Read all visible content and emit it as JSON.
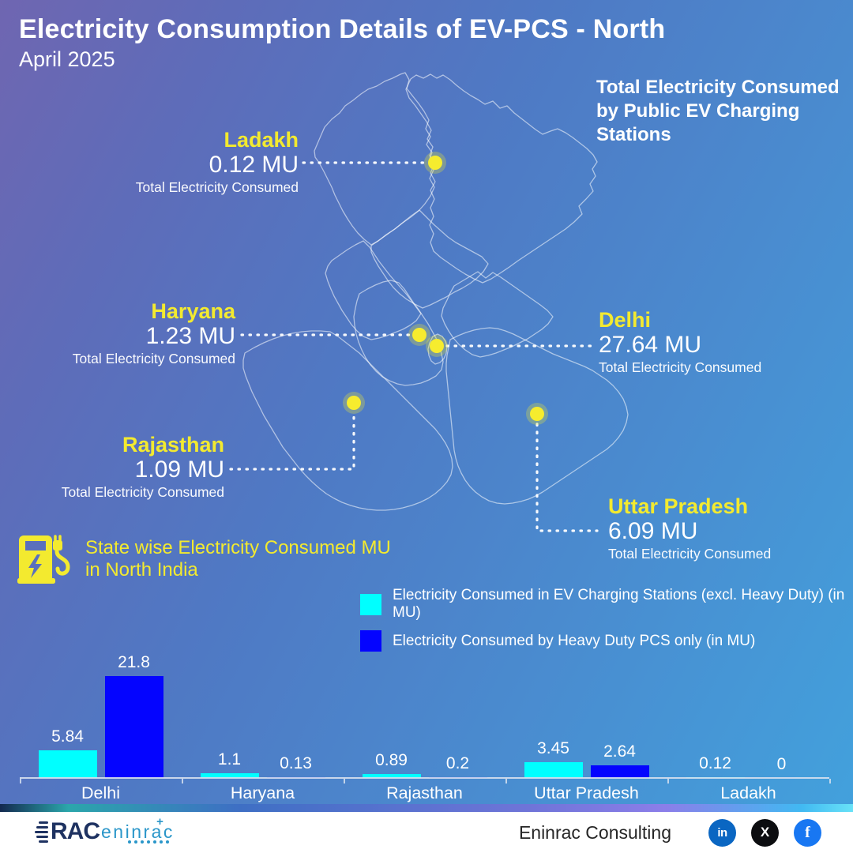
{
  "header": {
    "title": "Electricity Consumption Details of EV-PCS - North",
    "subtitle": "April 2025"
  },
  "map_note": "Total Electricity Consumed by Public EV Charging Stations",
  "states": [
    {
      "name": "Ladakh",
      "value": "0.12 MU",
      "caption": "Total Electricity Consumed"
    },
    {
      "name": "Haryana",
      "value": "1.23 MU",
      "caption": "Total Electricity Consumed"
    },
    {
      "name": "Delhi",
      "value": "27.64 MU",
      "caption": "Total Electricity Consumed"
    },
    {
      "name": "Rajasthan",
      "value": "1.09 MU",
      "caption": "Total Electricity Consumed"
    },
    {
      "name": "Uttar Pradesh",
      "value": "6.09 MU",
      "caption": "Total Electricity Consumed"
    }
  ],
  "section_label": {
    "line1": "State wise Electricity Consumed MU",
    "line2": "in North India"
  },
  "chart_data": {
    "type": "bar",
    "title": "State wise Electricity Consumed MU in North India",
    "categories": [
      "Delhi",
      "Haryana",
      "Rajasthan",
      "Uttar Pradesh",
      "Ladakh"
    ],
    "series": [
      {
        "name": "Electricity Consumed in EV Charging Stations (excl. Heavy Duty) (in MU)",
        "color": "#00FFFF",
        "values": [
          5.84,
          1.1,
          0.89,
          3.45,
          0.12
        ]
      },
      {
        "name": "Electricity Consumed by Heavy Duty PCS only (in MU)",
        "color": "#0404FF",
        "values": [
          21.8,
          0.13,
          0.2,
          2.64,
          0
        ]
      }
    ],
    "value_labels": [
      [
        "5.84",
        "21.8"
      ],
      [
        "1.1",
        "0.13"
      ],
      [
        "0.89",
        "0.2"
      ],
      [
        "3.45",
        "2.64"
      ],
      [
        "0.12",
        "0"
      ]
    ],
    "ylim": [
      0,
      22
    ],
    "grid": false,
    "legend_position": "above-chart-right"
  },
  "colors": {
    "accent_yellow": "#F3EA2F",
    "series_cyan": "#00FFFF",
    "series_blue": "#0404FF",
    "background_top_left": "#6F66B1",
    "background_bottom_right": "#42A2DD"
  },
  "footer": {
    "logo": {
      "rac": "RAC",
      "suffix": "eninrac",
      "plus": "+"
    },
    "brand": "Eninrac Consulting",
    "social": [
      {
        "name": "linkedin",
        "glyph": "in",
        "color": "#0A66C2"
      },
      {
        "name": "x",
        "glyph": "X",
        "color": "#0C0D10"
      },
      {
        "name": "facebook",
        "glyph": "f",
        "color": "#1877F2"
      }
    ]
  }
}
